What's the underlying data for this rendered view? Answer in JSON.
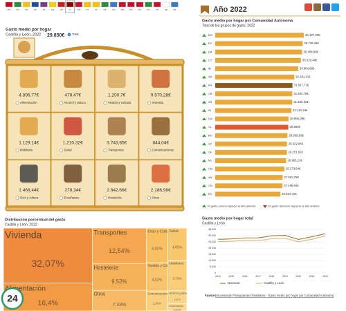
{
  "flags": [
    "ES",
    "AN",
    "AR",
    "AS",
    "IB",
    "CN",
    "CB",
    "CL",
    "CM",
    "CT",
    "VC",
    "EX",
    "GA",
    "MD",
    "MC",
    "NC",
    "PV",
    "RI",
    "CE",
    "ML"
  ],
  "basket": {
    "title": "Gasto medio por hogar",
    "subtitle": "Castilla y León, 2022",
    "total": "29.850€",
    "total_label": "Total",
    "items": [
      {
        "value": "4.896,77€",
        "label": "Alimentación"
      },
      {
        "value": "478,47€",
        "label": "Alcohol y tabaco"
      },
      {
        "value": "1.200,7€",
        "label": "Vestido y calzado"
      },
      {
        "value": "9.570,28€",
        "label": "Vivienda"
      },
      {
        "value": "1.129,14€",
        "label": "Mobiliario"
      },
      {
        "value": "1.210,32€",
        "label": "Salud"
      },
      {
        "value": "3.743,85€",
        "label": "Transportes"
      },
      {
        "value": "844,04€",
        "label": "Comunicaciones"
      },
      {
        "value": "1.468,44€",
        "label": "Ocio y cultura"
      },
      {
        "value": "278,34€",
        "label": "Enseñanza"
      },
      {
        "value": "2.842,66€",
        "label": "Hostelería"
      },
      {
        "value": "2.186,98€",
        "label": "Otros"
      }
    ]
  },
  "header": {
    "title": "Año 2022"
  },
  "watermark": "24",
  "source": {
    "prefix": "Fuente:",
    "link": "Encuesta de Presupuestos Familiares - Gasto medio por hogar por Comunidad Autónoma"
  },
  "chart_data": [
    {
      "type": "bar",
      "orientation": "horizontal",
      "title": "Gasto medio por hogar por Comunidad Autónoma",
      "subtitle": "Total de los grupos de gasto, 2022",
      "categories": [
        "MD",
        "PV",
        "NA",
        "CT",
        "IB",
        "AR",
        "ES",
        "CB",
        "AS",
        "RI",
        "GA",
        "CL",
        "MC",
        "VC",
        "CE",
        "ML",
        "CM",
        "AN",
        "CN",
        "EX"
      ],
      "values": [
        36197.6,
        35736.49,
        35484.88,
        35026.48,
        33884.88,
        32291.31,
        31567.71,
        31480.76,
        31468.52,
        31115.19,
        29956.08,
        29850,
        29509.59,
        29322.84,
        29251.91,
        28965.13,
        28273.64,
        27552.78,
        27489.84,
        26634.72
      ],
      "value_labels": [
        "36.197,60€",
        "35.736,49€",
        "35.484,88€",
        "35.026,48€",
        "33.884,88€",
        "32.291,31€",
        "31.567,71€",
        "31.480,76€",
        "31.468,52€",
        "31.115,19€",
        "29.956,08€",
        "29.850€",
        "29.509,59€",
        "29.322,84€",
        "29.251,91€",
        "28.965,13€",
        "28.273,64€",
        "27.552,78€",
        "27.489,84€",
        "26.634,72€"
      ],
      "colors": [
        "#e8a83a",
        "#e8a83a",
        "#e8a83a",
        "#e8a83a",
        "#e8a83a",
        "#e8a83a",
        "#8b5a1e",
        "#e8a83a",
        "#e8a83a",
        "#e8a83a",
        "#e8a83a",
        "#e05a30",
        "#e8a83a",
        "#e8a83a",
        "#e8a83a",
        "#e8a83a",
        "#e8a83a",
        "#e8a83a",
        "#e8a83a",
        "#e8a83a"
      ],
      "legend": [
        {
          "label": "El gasto creció respecto al año anterior",
          "color": "#3a9a3a"
        },
        {
          "label": "El gasto decreció respecto al año anterior",
          "color": "#c0392b"
        }
      ]
    },
    {
      "type": "treemap",
      "title": "Distribución porcentual del gasto",
      "subtitle": "Castilla y León, 2022",
      "categories": [
        "Vivienda",
        "Alimentación",
        "Transportes",
        "Hostelería",
        "Otros",
        "Ocio y Cultura",
        "Vestido y Calzado",
        "Salud",
        "Mobiliario",
        "Comunicaciones",
        "Alcohol y tabaco",
        "Enseñanza"
      ],
      "values": [
        32.07,
        16.4,
        12.54,
        9.52,
        7.33,
        4.92,
        4.02,
        4.05,
        3.78,
        2.83,
        1.6,
        0.93
      ],
      "value_labels": [
        "32,07%",
        "16,4%",
        "12,54%",
        "9,52%",
        "7,33%",
        "4,92%",
        "4,02%",
        "4,05%",
        "3,78%",
        "2,83%",
        "1,6%",
        "0,93%"
      ],
      "colors": [
        "#f08a3c",
        "#f39a44",
        "#f5a64e",
        "#f6b058",
        "#f7b964",
        "#f8c060",
        "#f8c36c",
        "#f9c86c",
        "#f9cc76",
        "#fad07e",
        "#fad486",
        "#fbd88e"
      ]
    },
    {
      "type": "line",
      "title": "Gasto medio por hogar total",
      "subtitle": "Castilla y León",
      "x": [
        2014,
        2015,
        2016,
        2017,
        2018,
        2019,
        2020,
        2021,
        2022
      ],
      "series": [
        {
          "name": "Nacional",
          "color": "#a07a3a",
          "values": [
            27038,
            27420,
            28200,
            28206,
            29871,
            30243,
            26996,
            29124,
            31568
          ]
        },
        {
          "name": "Castilla y León",
          "color": "#d9b57e",
          "values": [
            25200,
            25500,
            26300,
            26000,
            27500,
            27900,
            25100,
            27100,
            29850
          ]
        }
      ],
      "ylim": [
        0,
        35000
      ],
      "yticks": [
        0,
        {
          "value": 5000,
          "label": "5.000"
        },
        {
          "value": 10000,
          "label": "10.000"
        },
        {
          "value": 15000,
          "label": "15.000"
        },
        {
          "value": 20000,
          "label": "20.000"
        },
        {
          "value": 25000,
          "label": "25.000"
        },
        {
          "value": 30000,
          "label": "30.000"
        },
        {
          "value": 35000,
          "label": "35.000"
        }
      ],
      "grid": true
    }
  ]
}
